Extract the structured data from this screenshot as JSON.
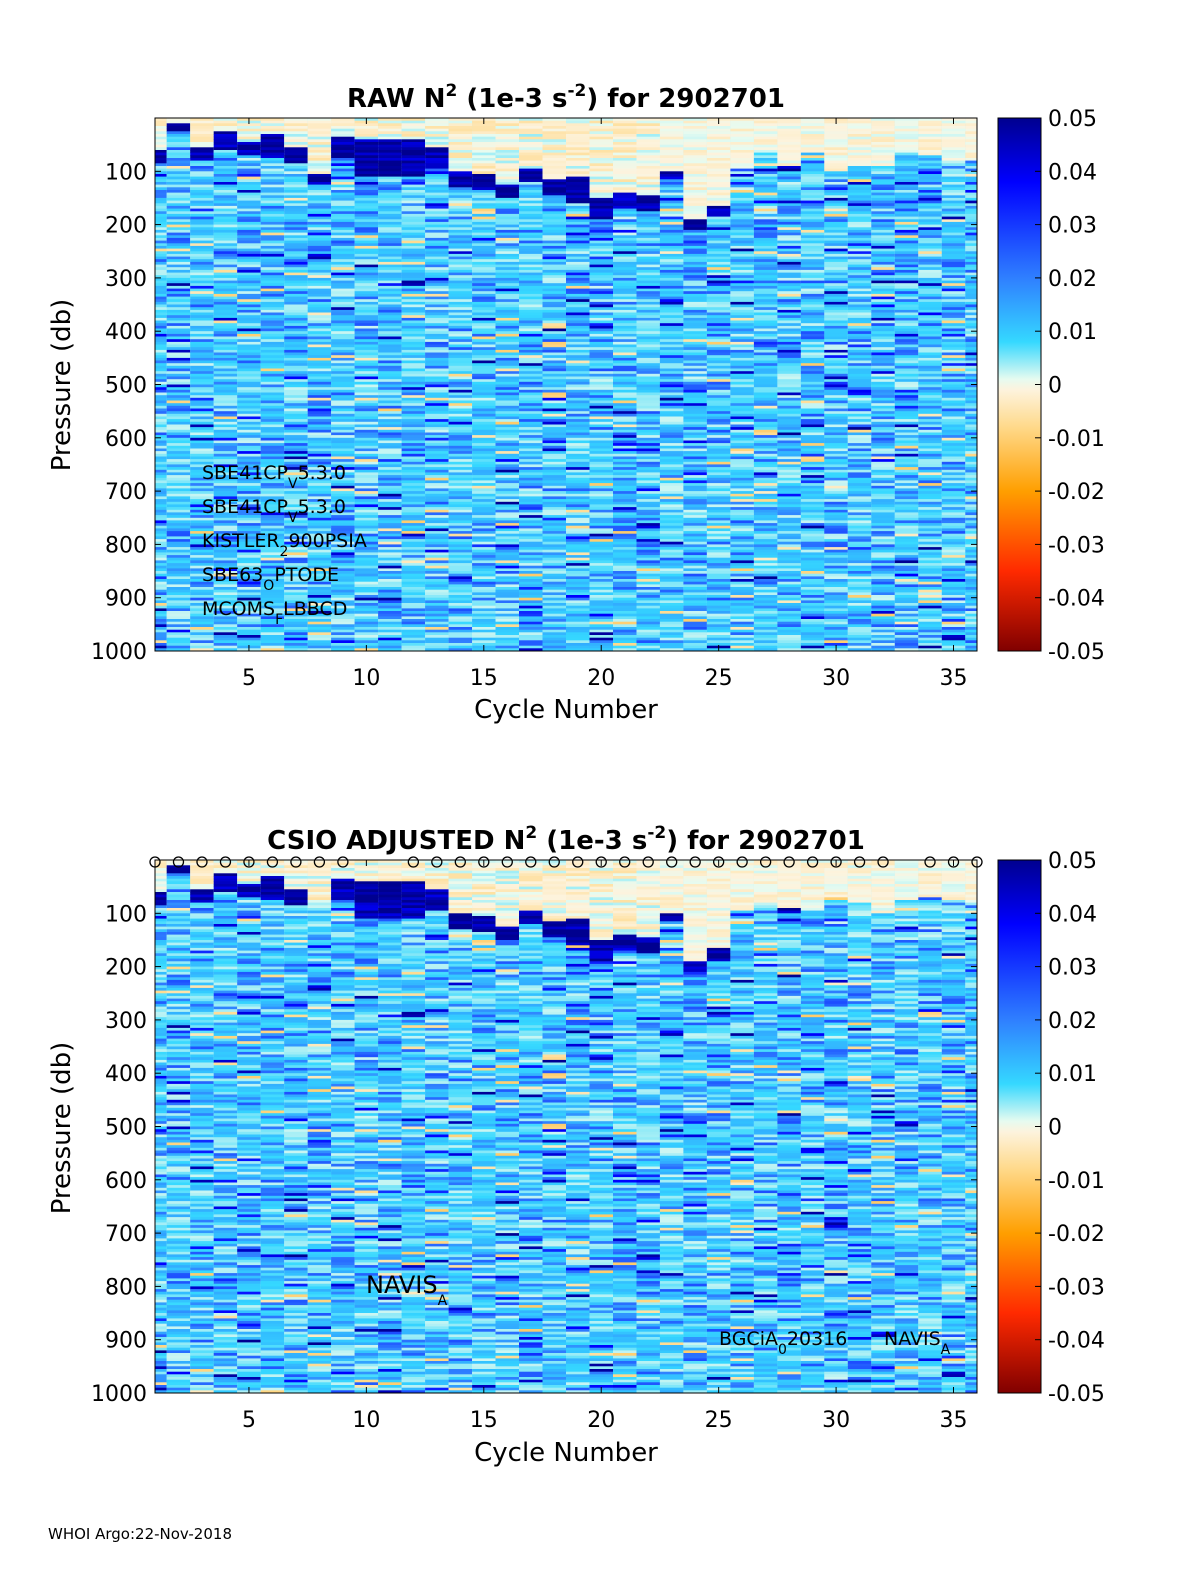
{
  "footer": "WHOI Argo:22-Nov-2018",
  "chart_data": [
    {
      "type": "heatmap",
      "title_parts": [
        "RAW N",
        "2",
        " (1e-3 s",
        "-2",
        ") for 2902701"
      ],
      "xlabel": "Cycle Number",
      "ylabel": "Pressure (db)",
      "xlim": [
        1,
        36
      ],
      "ylim": [
        0,
        1000
      ],
      "y_reversed": true,
      "x_ticks": [
        "5",
        "10",
        "15",
        "20",
        "25",
        "30",
        "35"
      ],
      "y_ticks": [
        "100",
        "200",
        "300",
        "400",
        "500",
        "600",
        "700",
        "800",
        "900",
        "1000"
      ],
      "colorbar": {
        "range": [
          -0.05,
          0.05
        ],
        "colormap": "jet-centered-white",
        "ticks": [
          "0.05",
          "0.04",
          "0.03",
          "0.02",
          "0.01",
          "0",
          "-0.01",
          "-0.02",
          "-0.03",
          "-0.04",
          "-0.05"
        ]
      },
      "annotations": [
        {
          "parts": [
            "SBE41CP",
            "V",
            "5.3.0"
          ]
        },
        {
          "parts": [
            "SBE41CP",
            "V",
            "5.3.0"
          ]
        },
        {
          "parts": [
            "KISTLER",
            "2",
            "900PSIA"
          ]
        },
        {
          "parts": [
            "SBE63",
            "O",
            "PTODE"
          ]
        },
        {
          "parts": [
            "MCOMS",
            "F",
            "LBBCD"
          ]
        }
      ],
      "mixed_layer_depth": [
        {
          "cycle": 1,
          "top": 60,
          "bottom": 85
        },
        {
          "cycle": 2,
          "top": 10,
          "bottom": 25
        },
        {
          "cycle": 3,
          "top": 55,
          "bottom": 80
        },
        {
          "cycle": 4,
          "top": 25,
          "bottom": 60
        },
        {
          "cycle": 5,
          "top": 45,
          "bottom": 70
        },
        {
          "cycle": 6,
          "top": 30,
          "bottom": 75
        },
        {
          "cycle": 7,
          "top": 55,
          "bottom": 85
        },
        {
          "cycle": 8,
          "top": 105,
          "bottom": 125
        },
        {
          "cycle": 9,
          "top": 35,
          "bottom": 75
        },
        {
          "cycle": 10,
          "top": 40,
          "bottom": 110
        },
        {
          "cycle": 11,
          "top": 40,
          "bottom": 110
        },
        {
          "cycle": 12,
          "top": 40,
          "bottom": 110
        },
        {
          "cycle": 13,
          "top": 55,
          "bottom": 95
        },
        {
          "cycle": 14,
          "top": 100,
          "bottom": 130
        },
        {
          "cycle": 15,
          "top": 105,
          "bottom": 135
        },
        {
          "cycle": 16,
          "top": 125,
          "bottom": 150
        },
        {
          "cycle": 17,
          "top": 95,
          "bottom": 120
        },
        {
          "cycle": 18,
          "top": 115,
          "bottom": 145
        },
        {
          "cycle": 19,
          "top": 110,
          "bottom": 160
        },
        {
          "cycle": 20,
          "top": 150,
          "bottom": 190
        },
        {
          "cycle": 21,
          "top": 140,
          "bottom": 170
        },
        {
          "cycle": 22,
          "top": 145,
          "bottom": 175
        },
        {
          "cycle": 23,
          "top": 100,
          "bottom": 115
        },
        {
          "cycle": 24,
          "top": 190,
          "bottom": 210
        },
        {
          "cycle": 25,
          "top": 165,
          "bottom": 185
        },
        {
          "cycle": 28,
          "top": 90,
          "bottom": 100
        }
      ]
    },
    {
      "type": "heatmap",
      "title_parts": [
        "CSIO  ADJUSTED N",
        "2",
        " (1e-3 s",
        "-2",
        ") for 2902701"
      ],
      "xlabel": "Cycle Number",
      "ylabel": "Pressure (db)",
      "xlim": [
        1,
        36
      ],
      "ylim": [
        0,
        1000
      ],
      "y_reversed": true,
      "x_ticks": [
        "5",
        "10",
        "15",
        "20",
        "25",
        "30",
        "35"
      ],
      "y_ticks": [
        "100",
        "200",
        "300",
        "400",
        "500",
        "600",
        "700",
        "800",
        "900",
        "1000"
      ],
      "colorbar": {
        "range": [
          -0.05,
          0.05
        ],
        "colormap": "jet-centered-white",
        "ticks": [
          "0.05",
          "0.04",
          "0.03",
          "0.02",
          "0.01",
          "0",
          "-0.01",
          "-0.02",
          "-0.03",
          "-0.04",
          "-0.05"
        ]
      },
      "marker_cycles": [
        1,
        2,
        3,
        4,
        5,
        6,
        7,
        8,
        9,
        12,
        13,
        14,
        15,
        16,
        17,
        18,
        19,
        20,
        21,
        22,
        23,
        24,
        25,
        26,
        27,
        28,
        29,
        30,
        31,
        32,
        34,
        35,
        36
      ],
      "annotations": [
        {
          "parts": [
            "NAVIS",
            "A",
            ""
          ]
        },
        {
          "parts": [
            "BGCiA",
            "0",
            "20316"
          ]
        },
        {
          "parts": [
            "NAVIS",
            "A",
            ""
          ]
        }
      ],
      "mixed_layer_depth": [
        {
          "cycle": 1,
          "top": 60,
          "bottom": 85
        },
        {
          "cycle": 2,
          "top": 10,
          "bottom": 25
        },
        {
          "cycle": 3,
          "top": 55,
          "bottom": 80
        },
        {
          "cycle": 4,
          "top": 25,
          "bottom": 60
        },
        {
          "cycle": 5,
          "top": 45,
          "bottom": 70
        },
        {
          "cycle": 6,
          "top": 30,
          "bottom": 75
        },
        {
          "cycle": 7,
          "top": 55,
          "bottom": 85
        },
        {
          "cycle": 9,
          "top": 35,
          "bottom": 75
        },
        {
          "cycle": 10,
          "top": 40,
          "bottom": 110
        },
        {
          "cycle": 11,
          "top": 40,
          "bottom": 110
        },
        {
          "cycle": 12,
          "top": 40,
          "bottom": 110
        },
        {
          "cycle": 13,
          "top": 55,
          "bottom": 95
        },
        {
          "cycle": 14,
          "top": 100,
          "bottom": 130
        },
        {
          "cycle": 15,
          "top": 105,
          "bottom": 135
        },
        {
          "cycle": 16,
          "top": 125,
          "bottom": 150
        },
        {
          "cycle": 17,
          "top": 95,
          "bottom": 120
        },
        {
          "cycle": 18,
          "top": 115,
          "bottom": 145
        },
        {
          "cycle": 19,
          "top": 110,
          "bottom": 160
        },
        {
          "cycle": 20,
          "top": 150,
          "bottom": 190
        },
        {
          "cycle": 21,
          "top": 140,
          "bottom": 170
        },
        {
          "cycle": 22,
          "top": 145,
          "bottom": 175
        },
        {
          "cycle": 23,
          "top": 100,
          "bottom": 115
        },
        {
          "cycle": 24,
          "top": 190,
          "bottom": 210
        },
        {
          "cycle": 25,
          "top": 165,
          "bottom": 185
        },
        {
          "cycle": 28,
          "top": 90,
          "bottom": 100
        }
      ]
    }
  ]
}
